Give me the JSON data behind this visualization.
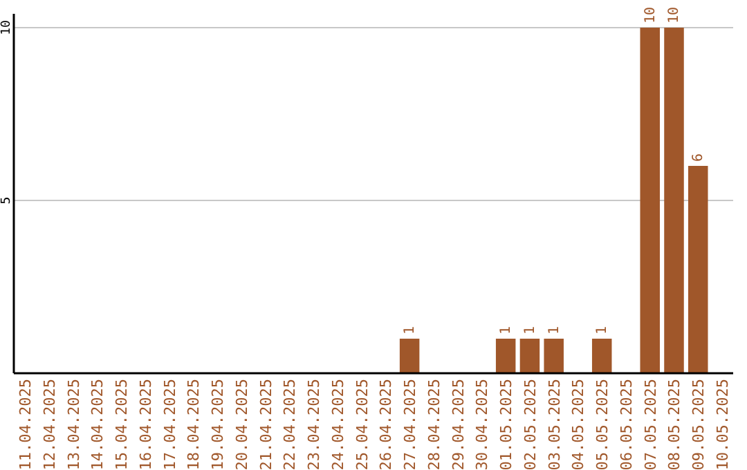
{
  "chart_data": {
    "type": "bar",
    "categories": [
      "11.04.2025",
      "12.04.2025",
      "13.04.2025",
      "14.04.2025",
      "15.04.2025",
      "16.04.2025",
      "17.04.2025",
      "18.04.2025",
      "19.04.2025",
      "20.04.2025",
      "21.04.2025",
      "22.04.2025",
      "23.04.2025",
      "24.04.2025",
      "25.04.2025",
      "26.04.2025",
      "27.04.2025",
      "28.04.2025",
      "29.04.2025",
      "30.04.2025",
      "01.05.2025",
      "02.05.2025",
      "03.05.2025",
      "04.05.2025",
      "05.05.2025",
      "06.05.2025",
      "07.05.2025",
      "08.05.2025",
      "09.05.2025",
      "10.05.2025"
    ],
    "values": [
      0,
      0,
      0,
      0,
      0,
      0,
      0,
      0,
      0,
      0,
      0,
      0,
      0,
      0,
      0,
      0,
      1,
      0,
      0,
      0,
      1,
      1,
      1,
      0,
      1,
      0,
      10,
      10,
      6,
      0
    ],
    "value_labels": [
      null,
      null,
      null,
      null,
      null,
      null,
      null,
      null,
      null,
      null,
      null,
      null,
      null,
      null,
      null,
      null,
      "1",
      null,
      null,
      null,
      "1",
      "1",
      "1",
      null,
      "1",
      null,
      "10",
      "10",
      "6",
      null
    ],
    "color": "#a0572a",
    "ylim": [
      0,
      10.4
    ],
    "yticks": [
      5,
      10
    ],
    "grid": "y"
  }
}
